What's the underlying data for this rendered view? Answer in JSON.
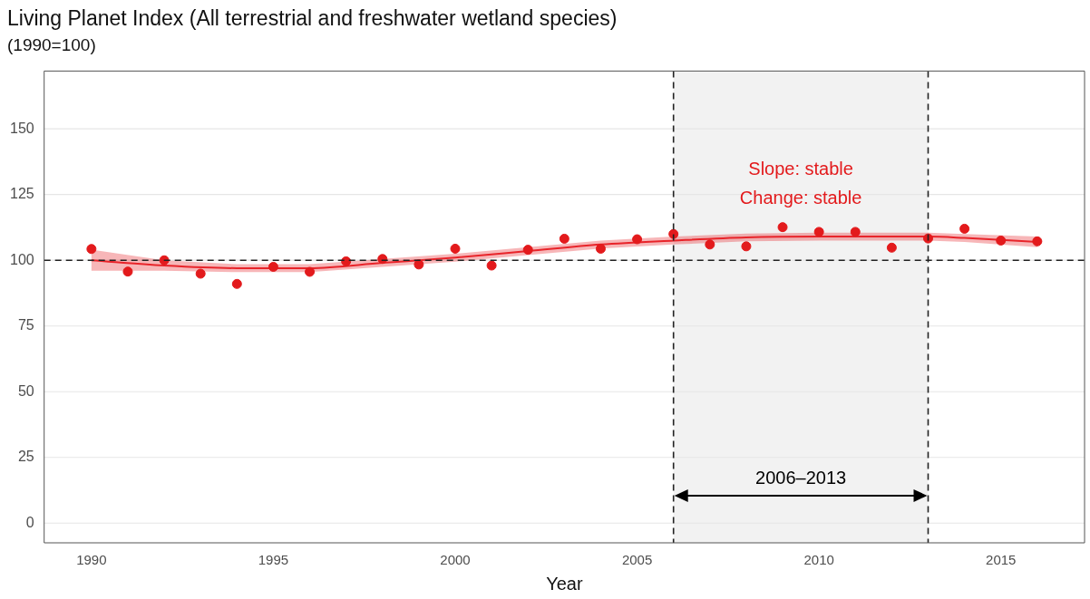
{
  "chart_data": {
    "type": "scatter",
    "title": "Living Planet Index (All terrestrial and freshwater wetland species)",
    "subtitle": "(1990=100)",
    "xlabel": "Year",
    "x": [
      1990,
      1991,
      1992,
      1993,
      1994,
      1995,
      1996,
      1997,
      1998,
      1999,
      2000,
      2001,
      2002,
      2003,
      2004,
      2005,
      2006,
      2007,
      2008,
      2009,
      2010,
      2011,
      2012,
      2013,
      2014,
      2015,
      2016
    ],
    "series": [
      {
        "color": "#e31a1c",
        "marker": "circle",
        "values": [
          104.3,
          95.7,
          100,
          94.9,
          91,
          97.5,
          95.6,
          99.6,
          100.5,
          98.4,
          104.4,
          98,
          104,
          108.2,
          104.4,
          108,
          110,
          106,
          105.3,
          112.6,
          110.8,
          110.8,
          104.8,
          108.3,
          112,
          107.5,
          107.2
        ]
      },
      {
        "type": "line",
        "marker": "none",
        "color": "#e8242a",
        "x": [
          1990,
          1992,
          1994,
          1996,
          1998,
          2000,
          2002,
          2004,
          2006,
          2008,
          2010,
          2012,
          2013,
          2014,
          2016
        ],
        "values": [
          100,
          98,
          97,
          97,
          99,
          101,
          103.5,
          106,
          107.5,
          108.7,
          109,
          109,
          109,
          108.5,
          107
        ],
        "lower": [
          96,
          96,
          95.5,
          95.5,
          97.5,
          99.5,
          102,
          104.5,
          106,
          107.2,
          107.5,
          107.5,
          107.5,
          107,
          105
        ],
        "upper": [
          104,
          100,
          98.5,
          98.5,
          100.5,
          102.5,
          105,
          107.5,
          109,
          110.2,
          110.5,
          110.5,
          110.5,
          110,
          109
        ]
      }
    ],
    "xlim": [
      1988.7,
      2017.3
    ],
    "xticks": [
      1990,
      1995,
      2000,
      2005,
      2010,
      2015
    ],
    "ylim": [
      -7.5,
      172
    ],
    "yticks": [
      0,
      25,
      50,
      75,
      100,
      125,
      150
    ],
    "grid": "y",
    "legend": false,
    "ref_lines": [
      {
        "axis": "y",
        "value": 100,
        "color": "#222222",
        "line_style": "dashed"
      },
      {
        "axis": "x",
        "value": 2006,
        "color": "#222222",
        "line_style": "dashed"
      },
      {
        "axis": "x",
        "value": 2013,
        "color": "#222222",
        "line_style": "dashed"
      }
    ],
    "bands": [
      {
        "axis": "x",
        "from": 2006,
        "to": 2013,
        "label": "2006–2013",
        "color": "#f2f2f2"
      }
    ],
    "annotations": [
      "Slope: stable",
      "Change: stable"
    ]
  }
}
